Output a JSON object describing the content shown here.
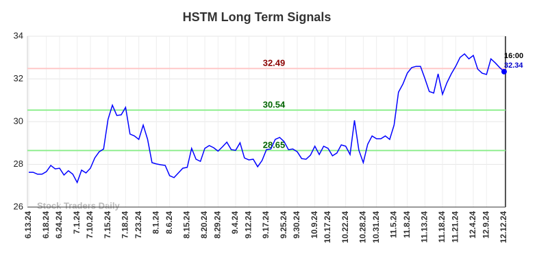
{
  "chart_data": {
    "type": "line",
    "title": "HSTM Long Term Signals",
    "watermark": "Stock Traders Daily",
    "categories": [
      "6.13.24",
      null,
      null,
      null,
      "6.18.24",
      null,
      null,
      "6.24.24",
      null,
      null,
      null,
      "7.1.24",
      null,
      null,
      "7.10.24",
      null,
      null,
      null,
      "7.15.24",
      null,
      null,
      null,
      "7.18.24",
      null,
      null,
      "7.23.24",
      null,
      null,
      null,
      "8.1.24",
      null,
      null,
      "8.6.24",
      null,
      null,
      null,
      "8.15.24",
      null,
      null,
      null,
      "8.20.24",
      null,
      null,
      "8.29.24",
      null,
      null,
      null,
      "9.4.24",
      null,
      null,
      "9.12.24",
      null,
      null,
      null,
      "9.17.24",
      null,
      null,
      null,
      "9.25.24",
      null,
      null,
      "9.30.24",
      null,
      null,
      null,
      "10.9.24",
      null,
      null,
      "10.17.24",
      null,
      null,
      null,
      "10.22.24",
      null,
      null,
      null,
      "10.28.24",
      null,
      null,
      "10.31.24",
      null,
      null,
      null,
      "11.5.24",
      null,
      null,
      "11.8.24",
      null,
      null,
      null,
      "11.13.24",
      null,
      null,
      null,
      "11.18.24",
      null,
      null,
      "11.21.24",
      null,
      null,
      null,
      "12.4.24",
      null,
      null,
      "12.9.24",
      null,
      null,
      null,
      "12.12.24"
    ],
    "series": [
      {
        "color": "#0000ff",
        "values": [
          27.63,
          27.63,
          27.54,
          27.54,
          27.66,
          27.95,
          27.79,
          27.82,
          27.5,
          27.7,
          27.54,
          27.15,
          27.73,
          27.6,
          27.82,
          28.3,
          28.59,
          28.72,
          30.1,
          30.77,
          30.29,
          30.32,
          30.67,
          29.42,
          29.33,
          29.17,
          29.84,
          29.17,
          28.08,
          28.02,
          27.98,
          27.95,
          27.47,
          27.38,
          27.6,
          27.82,
          27.86,
          28.75,
          28.24,
          28.14,
          28.75,
          28.88,
          28.78,
          28.62,
          28.82,
          29.04,
          28.69,
          28.66,
          29.01,
          28.3,
          28.21,
          28.24,
          27.89,
          28.18,
          28.69,
          28.72,
          29.17,
          29.26,
          29.07,
          28.69,
          28.72,
          28.59,
          28.27,
          28.24,
          28.43,
          28.85,
          28.46,
          28.85,
          28.75,
          28.4,
          28.53,
          28.91,
          28.85,
          28.46,
          30.06,
          28.66,
          28.08,
          28.94,
          29.33,
          29.2,
          29.2,
          29.33,
          29.17,
          29.84,
          31.38,
          31.76,
          32.27,
          32.53,
          32.59,
          32.59,
          32.02,
          31.41,
          31.34,
          32.24,
          31.28,
          31.82,
          32.24,
          32.59,
          33.01,
          33.17,
          32.94,
          33.1,
          32.46,
          32.27,
          32.21,
          32.94,
          32.75,
          32.53,
          32.34
        ]
      }
    ],
    "last_label": "16:00",
    "last_color": "#0000cc",
    "levels": [
      {
        "value": 32.49,
        "color": "#ffc8c8",
        "label_color": "#8b0000"
      },
      {
        "value": 30.54,
        "color": "#90ee90",
        "label_color": "#006400"
      },
      {
        "value": 28.65,
        "color": "#90ee90",
        "label_color": "#006400"
      }
    ],
    "ylim": [
      26,
      34
    ],
    "yticks": [
      26,
      28,
      30,
      32,
      34
    ],
    "grid": true
  }
}
